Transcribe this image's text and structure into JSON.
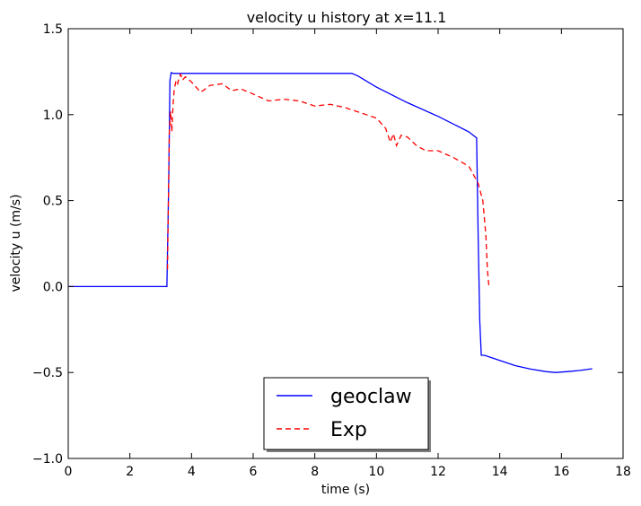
{
  "chart_data": {
    "type": "line",
    "title": "velocity u history at x=11.1",
    "xlabel": "time (s)",
    "ylabel": "velocity u (m/s)",
    "xlim": [
      0,
      18
    ],
    "ylim": [
      -1.0,
      1.5
    ],
    "xticks": [
      0,
      2,
      4,
      6,
      8,
      10,
      12,
      14,
      16,
      18
    ],
    "yticks": [
      -1.0,
      -0.5,
      0.0,
      0.5,
      1.0,
      1.5
    ],
    "xtick_labels": [
      "0",
      "2",
      "4",
      "6",
      "8",
      "10",
      "12",
      "14",
      "16",
      "18"
    ],
    "ytick_labels": [
      "−1.0",
      "−0.5",
      "0.0",
      "0.5",
      "1.0",
      "1.5"
    ],
    "grid": false,
    "legend_position": "bottom-center",
    "series": [
      {
        "name": "geoclaw",
        "color": "#0000ff",
        "style": "solid",
        "x": [
          0,
          0.1,
          0.3,
          3.2,
          3.26,
          3.3,
          3.34,
          3.4,
          3.5,
          6.0,
          9.0,
          9.2,
          9.4,
          10.0,
          11.0,
          12.0,
          13.0,
          13.25,
          13.3,
          13.35,
          13.4,
          13.5,
          14.0,
          14.5,
          15.0,
          15.5,
          15.8,
          16.2,
          16.6,
          17.0
        ],
        "y": [
          0.0,
          0.0,
          0.0,
          0.0,
          0.6,
          1.2,
          1.245,
          1.24,
          1.24,
          1.24,
          1.24,
          1.24,
          1.225,
          1.16,
          1.07,
          0.99,
          0.9,
          0.865,
          0.3,
          -0.2,
          -0.4,
          -0.4,
          -0.43,
          -0.46,
          -0.48,
          -0.495,
          -0.5,
          -0.495,
          -0.488,
          -0.478
        ]
      },
      {
        "name": "Exp",
        "color": "#ff0000",
        "style": "dashed",
        "x": [
          3.22,
          3.28,
          3.32,
          3.36,
          3.4,
          3.44,
          3.5,
          3.55,
          3.6,
          3.65,
          3.7,
          3.8,
          4.0,
          4.3,
          4.6,
          5.0,
          5.3,
          5.6,
          6.0,
          6.5,
          7.0,
          7.5,
          8.0,
          8.5,
          9.0,
          9.5,
          10.0,
          10.3,
          10.45,
          10.55,
          10.65,
          10.8,
          11.0,
          11.3,
          11.6,
          12.0,
          12.5,
          13.0,
          13.3,
          13.45,
          13.55,
          13.6,
          13.65
        ],
        "y": [
          0.1,
          0.9,
          1.02,
          0.9,
          1.05,
          1.15,
          1.2,
          1.18,
          1.22,
          1.235,
          1.2,
          1.22,
          1.19,
          1.13,
          1.17,
          1.18,
          1.14,
          1.15,
          1.12,
          1.08,
          1.09,
          1.08,
          1.05,
          1.06,
          1.04,
          1.01,
          0.98,
          0.92,
          0.84,
          0.89,
          0.82,
          0.88,
          0.87,
          0.82,
          0.79,
          0.79,
          0.75,
          0.7,
          0.6,
          0.5,
          0.3,
          0.1,
          0.0
        ]
      }
    ]
  }
}
